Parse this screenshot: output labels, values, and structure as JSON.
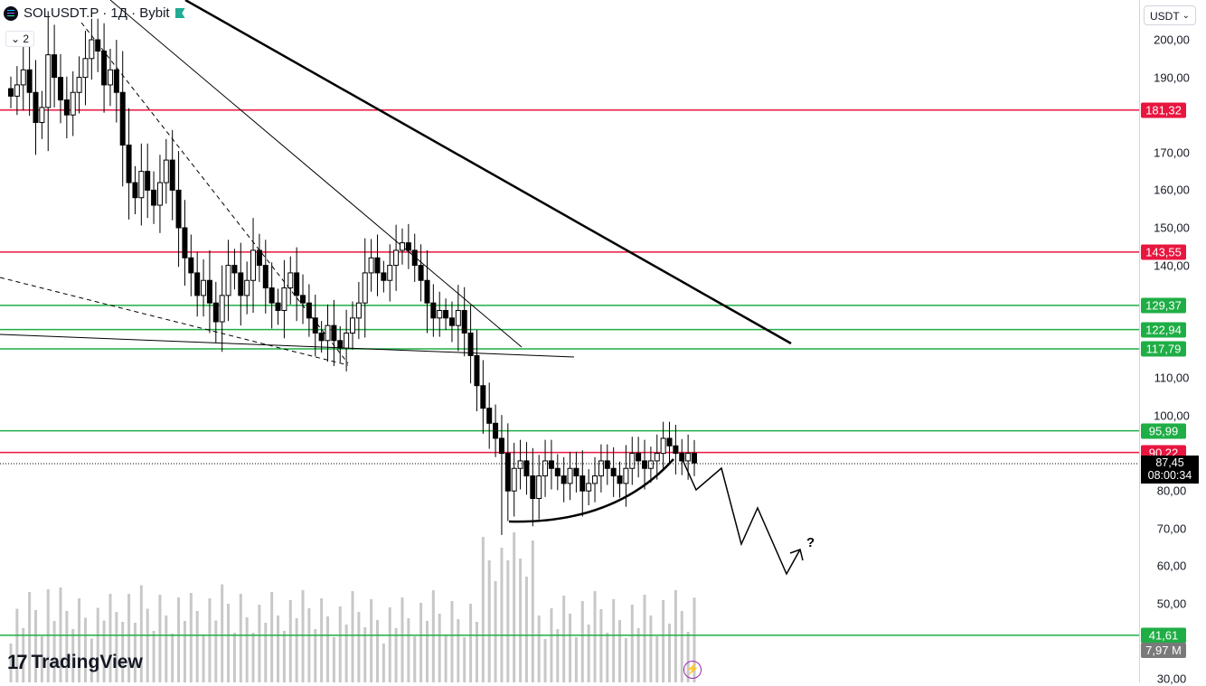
{
  "header": {
    "title": "SOLUSDT.P · 1Д · Bybit",
    "collapse_label": "2",
    "currency": "USDT"
  },
  "branding": {
    "logo_text": "TradingView"
  },
  "colors": {
    "support": "#1fae45",
    "resistance": "#e8163f",
    "candle": "#000000",
    "volume": "#c8c8c8"
  },
  "chart_data": {
    "type": "candlestick",
    "symbol": "SOLUSDT.P",
    "interval": "1Д",
    "exchange": "Bybit",
    "ylim": [
      30,
      205
    ],
    "y_ticks": [
      200,
      190,
      170,
      160,
      150,
      140,
      110,
      100,
      80,
      70,
      60,
      50,
      30
    ],
    "y_tick_labels": [
      "200,00",
      "190,00",
      "170,00",
      "160,00",
      "150,00",
      "140,00",
      "110,00",
      "100,00",
      "80,00",
      "70,00",
      "60,00",
      "50,00",
      "30,00"
    ],
    "horizontal_levels": [
      {
        "value": 181.32,
        "label": "181,32",
        "role": "resistance"
      },
      {
        "value": 143.55,
        "label": "143,55",
        "role": "resistance"
      },
      {
        "value": 129.37,
        "label": "129,37",
        "role": "support"
      },
      {
        "value": 122.94,
        "label": "122,94",
        "role": "support"
      },
      {
        "value": 117.79,
        "label": "117,79",
        "role": "support"
      },
      {
        "value": 95.99,
        "label": "95,99",
        "role": "support"
      },
      {
        "value": 90.22,
        "label": "90,22",
        "role": "resistance"
      },
      {
        "value": 41.61,
        "label": "41,61",
        "role": "support"
      }
    ],
    "current_price": {
      "value": 87.45,
      "label": "87,45",
      "countdown": "08:00:34"
    },
    "volume_label": "7,97 M",
    "annotation": "?",
    "closes": [
      185,
      188,
      192,
      186,
      178,
      182,
      196,
      190,
      184,
      180,
      186,
      190,
      195,
      200,
      197,
      188,
      192,
      186,
      172,
      162,
      158,
      165,
      160,
      156,
      162,
      168,
      160,
      150,
      142,
      138,
      132,
      136,
      130,
      125,
      132,
      140,
      138,
      132,
      136,
      144,
      140,
      134,
      130,
      128,
      134,
      138,
      132,
      130,
      126,
      122,
      120,
      124,
      120,
      118,
      122,
      126,
      130,
      138,
      142,
      138,
      136,
      140,
      144,
      146,
      144,
      140,
      136,
      130,
      126,
      128,
      126,
      124,
      128,
      122,
      116,
      108,
      102,
      98,
      94,
      90,
      80,
      86,
      88,
      84,
      78,
      84,
      88,
      86,
      84,
      82,
      86,
      84,
      80,
      82,
      84,
      88,
      86,
      84,
      82,
      86,
      90,
      88,
      86,
      88,
      90,
      94,
      92,
      90,
      88,
      90,
      87.45
    ]
  }
}
